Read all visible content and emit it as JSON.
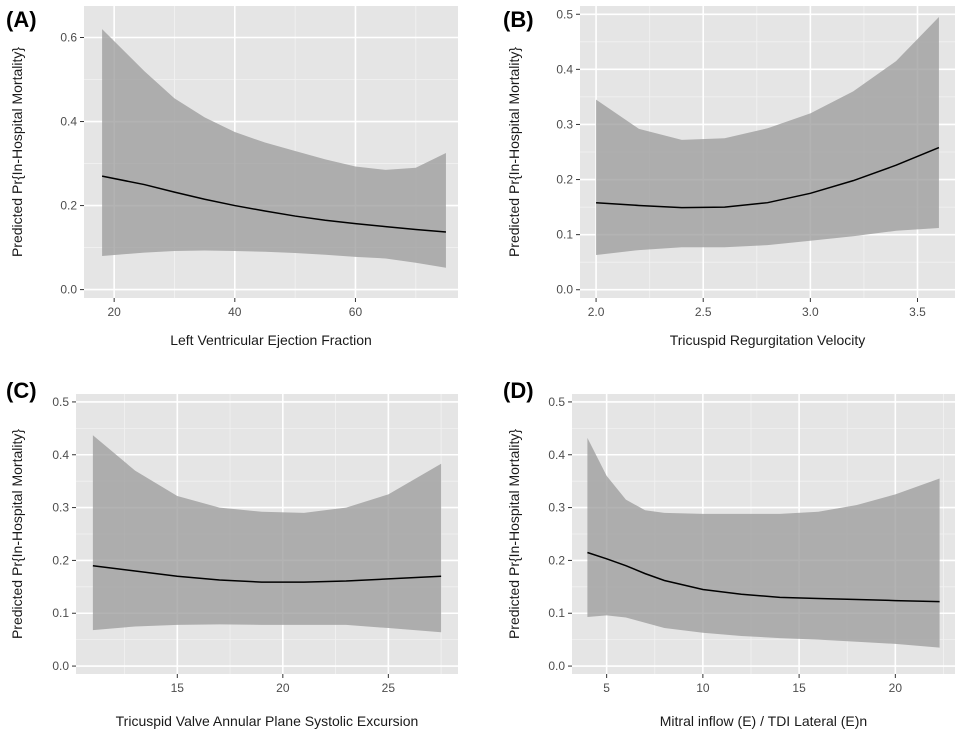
{
  "chart_data": [
    {
      "type": "line",
      "panel_label": "(A)",
      "xlabel": "Left Ventricular Ejection Fraction",
      "ylabel": "Predicted Pr{In-Hospital Mortality}",
      "xlim": [
        15,
        77
      ],
      "ylim": [
        -0.02,
        0.675
      ],
      "xticks": [
        20,
        40,
        60
      ],
      "xtick_labels": [
        "20",
        "40",
        "60"
      ],
      "yticks": [
        0.0,
        0.2,
        0.4,
        0.6
      ],
      "ytick_labels": [
        "0.0",
        "0.2",
        "0.4",
        "0.6"
      ],
      "grid": true,
      "series": [
        {
          "x": [
            18,
            25,
            30,
            35,
            40,
            45,
            50,
            55,
            60,
            65,
            70,
            75
          ],
          "y": [
            0.27,
            0.25,
            0.232,
            0.215,
            0.2,
            0.187,
            0.175,
            0.165,
            0.157,
            0.15,
            0.143,
            0.137
          ],
          "lower": [
            0.08,
            0.088,
            0.092,
            0.093,
            0.092,
            0.09,
            0.087,
            0.083,
            0.078,
            0.074,
            0.064,
            0.052
          ],
          "upper": [
            0.62,
            0.52,
            0.455,
            0.41,
            0.375,
            0.35,
            0.33,
            0.31,
            0.293,
            0.285,
            0.29,
            0.325
          ]
        }
      ]
    },
    {
      "type": "line",
      "panel_label": "(B)",
      "xlabel": "Tricuspid Regurgitation Velocity",
      "ylabel": "Predicted Pr{In-Hospital Mortality}",
      "xlim": [
        1.925,
        3.675
      ],
      "ylim": [
        -0.015,
        0.515
      ],
      "xticks": [
        2.0,
        2.5,
        3.0,
        3.5
      ],
      "xtick_labels": [
        "2.0",
        "2.5",
        "3.0",
        "3.5"
      ],
      "yticks": [
        0.0,
        0.1,
        0.2,
        0.3,
        0.4,
        0.5
      ],
      "ytick_labels": [
        "0.0",
        "0.1",
        "0.2",
        "0.3",
        "0.4",
        "0.5"
      ],
      "grid": true,
      "series": [
        {
          "x": [
            2.0,
            2.2,
            2.4,
            2.6,
            2.8,
            3.0,
            3.2,
            3.4,
            3.6
          ],
          "y": [
            0.158,
            0.153,
            0.149,
            0.15,
            0.158,
            0.175,
            0.198,
            0.226,
            0.258
          ],
          "lower": [
            0.063,
            0.072,
            0.077,
            0.077,
            0.081,
            0.089,
            0.097,
            0.107,
            0.112
          ],
          "upper": [
            0.345,
            0.292,
            0.272,
            0.275,
            0.293,
            0.32,
            0.36,
            0.415,
            0.495
          ]
        }
      ]
    },
    {
      "type": "line",
      "panel_label": "(C)",
      "xlabel": "Tricuspid Valve Annular Plane Systolic Excursion",
      "ylabel": "Predicted Pr{In-Hospital Mortality}",
      "xlim": [
        10.2,
        28.3
      ],
      "ylim": [
        -0.015,
        0.515
      ],
      "xticks": [
        15,
        20,
        25
      ],
      "xtick_labels": [
        "15",
        "20",
        "25"
      ],
      "yticks": [
        0.0,
        0.1,
        0.2,
        0.3,
        0.4,
        0.5
      ],
      "ytick_labels": [
        "0.0",
        "0.1",
        "0.2",
        "0.3",
        "0.4",
        "0.5"
      ],
      "grid": true,
      "series": [
        {
          "x": [
            11,
            13,
            15,
            17,
            19,
            21,
            23,
            25,
            27.5
          ],
          "y": [
            0.19,
            0.18,
            0.17,
            0.163,
            0.159,
            0.159,
            0.161,
            0.165,
            0.17
          ],
          "lower": [
            0.068,
            0.075,
            0.078,
            0.079,
            0.078,
            0.078,
            0.078,
            0.072,
            0.064
          ],
          "upper": [
            0.437,
            0.37,
            0.322,
            0.3,
            0.292,
            0.29,
            0.3,
            0.325,
            0.383
          ]
        }
      ]
    },
    {
      "type": "line",
      "panel_label": "(D)",
      "xlabel": "Mitral inflow (E) / TDI Lateral (E)n",
      "ylabel": "Predicted Pr{In-Hospital Mortality}",
      "xlim": [
        3.2,
        23.1
      ],
      "ylim": [
        -0.015,
        0.515
      ],
      "xticks": [
        5,
        10,
        15,
        20
      ],
      "xtick_labels": [
        "5",
        "10",
        "15",
        "20"
      ],
      "yticks": [
        0.0,
        0.1,
        0.2,
        0.3,
        0.4,
        0.5
      ],
      "ytick_labels": [
        "0.0",
        "0.1",
        "0.2",
        "0.3",
        "0.4",
        "0.5"
      ],
      "grid": true,
      "series": [
        {
          "x": [
            4,
            5,
            6,
            7,
            8,
            10,
            12,
            14,
            16,
            18,
            20,
            22.3
          ],
          "y": [
            0.215,
            0.203,
            0.19,
            0.175,
            0.162,
            0.145,
            0.136,
            0.13,
            0.128,
            0.126,
            0.124,
            0.122
          ],
          "lower": [
            0.093,
            0.096,
            0.092,
            0.082,
            0.072,
            0.063,
            0.057,
            0.053,
            0.05,
            0.046,
            0.042,
            0.035
          ],
          "upper": [
            0.432,
            0.36,
            0.315,
            0.295,
            0.29,
            0.288,
            0.288,
            0.288,
            0.292,
            0.305,
            0.325,
            0.355
          ]
        }
      ]
    }
  ]
}
